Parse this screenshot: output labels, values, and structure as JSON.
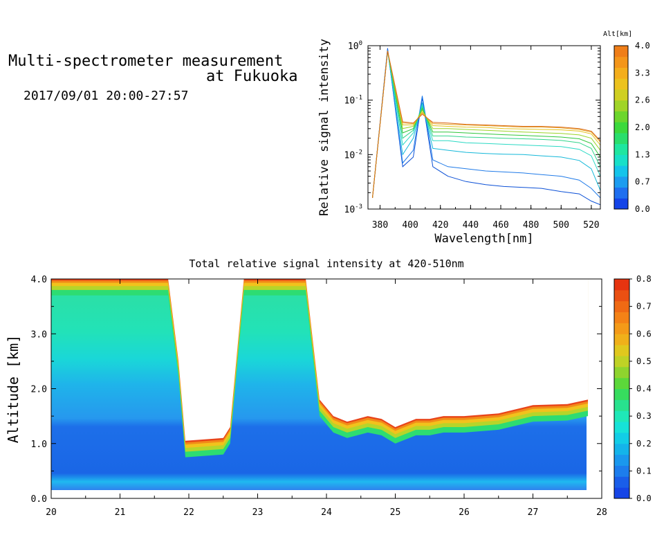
{
  "header": {
    "title_line1": "Multi-spectrometer measurement",
    "title_line2": "at Fukuoka",
    "date_range": "2017/09/01 20:00-27:57"
  },
  "chart_data": [
    {
      "type": "line",
      "xlabel": "Wavelength[nm]",
      "ylabel": "Relative signal intensity",
      "xlim": [
        372,
        526
      ],
      "ylim": [
        0.001,
        1
      ],
      "yscale": "log",
      "x_ticks": [
        "380",
        "400",
        "420",
        "440",
        "460",
        "480",
        "500",
        "520"
      ],
      "y_ticks": [
        "10-3",
        "10-2",
        "10-1",
        "100"
      ],
      "x": [
        375,
        385,
        395,
        402,
        408,
        415,
        425,
        437,
        450,
        462,
        475,
        487,
        500,
        512,
        520,
        526
      ],
      "series": [
        {
          "color": "#0a4fd6",
          "values": [
            0.0016,
            0.9,
            0.006,
            0.009,
            0.11,
            0.006,
            0.004,
            0.0032,
            0.0028,
            0.0026,
            0.0025,
            0.0024,
            0.0021,
            0.0019,
            0.0014,
            0.0012
          ]
        },
        {
          "color": "#1f7ae8",
          "values": [
            0.0016,
            0.85,
            0.007,
            0.012,
            0.12,
            0.008,
            0.006,
            0.0055,
            0.005,
            0.0048,
            0.0046,
            0.0043,
            0.004,
            0.0034,
            0.0024,
            0.0016
          ]
        },
        {
          "color": "#13b8d9",
          "values": [
            0.0016,
            0.8,
            0.01,
            0.02,
            0.09,
            0.013,
            0.012,
            0.011,
            0.0105,
            0.0102,
            0.01,
            0.0095,
            0.009,
            0.0078,
            0.0055,
            0.0022
          ]
        },
        {
          "color": "#2ad9c4",
          "values": [
            0.0016,
            0.8,
            0.015,
            0.025,
            0.08,
            0.018,
            0.018,
            0.0165,
            0.016,
            0.0155,
            0.015,
            0.0145,
            0.014,
            0.0125,
            0.0095,
            0.004
          ]
        },
        {
          "color": "#31d48a",
          "values": [
            0.0016,
            0.8,
            0.02,
            0.028,
            0.075,
            0.022,
            0.022,
            0.021,
            0.0205,
            0.02,
            0.0195,
            0.019,
            0.0182,
            0.0165,
            0.013,
            0.006
          ]
        },
        {
          "color": "#2fc63a",
          "values": [
            0.0016,
            0.8,
            0.025,
            0.03,
            0.07,
            0.026,
            0.026,
            0.025,
            0.024,
            0.0232,
            0.0225,
            0.0218,
            0.021,
            0.0195,
            0.016,
            0.009
          ]
        },
        {
          "color": "#9ad426",
          "values": [
            0.0016,
            0.8,
            0.03,
            0.033,
            0.065,
            0.03,
            0.03,
            0.029,
            0.028,
            0.027,
            0.026,
            0.0252,
            0.0245,
            0.023,
            0.02,
            0.012
          ]
        },
        {
          "color": "#e3c21d",
          "values": [
            0.0016,
            0.8,
            0.035,
            0.035,
            0.06,
            0.034,
            0.033,
            0.032,
            0.0315,
            0.03,
            0.0295,
            0.029,
            0.0285,
            0.027,
            0.024,
            0.015
          ]
        },
        {
          "color": "#e8a11f",
          "values": [
            0.0016,
            0.8,
            0.038,
            0.037,
            0.058,
            0.037,
            0.036,
            0.035,
            0.034,
            0.033,
            0.032,
            0.032,
            0.031,
            0.029,
            0.026,
            0.017
          ]
        },
        {
          "color": "#d96a1c",
          "values": [
            0.0016,
            0.8,
            0.04,
            0.038,
            0.055,
            0.039,
            0.038,
            0.036,
            0.035,
            0.034,
            0.033,
            0.033,
            0.032,
            0.03,
            0.027,
            0.018
          ]
        }
      ],
      "colorbar": {
        "title": "Alt[km]",
        "tick_labels": [
          "0.0",
          "0.7",
          "1.3",
          "2.0",
          "2.6",
          "3.3",
          "4.0"
        ],
        "colors": [
          "#1444e8",
          "#1f6ff0",
          "#1c9cf0",
          "#14c4ea",
          "#18e0c8",
          "#1fe6a0",
          "#2ade6c",
          "#3cd93c",
          "#6cd62c",
          "#a0d428",
          "#cfcf22",
          "#ecc21e",
          "#f4ae1c",
          "#f4961a",
          "#ef7e18"
        ]
      }
    },
    {
      "type": "heatmap",
      "title": "Total relative signal intensity at 420-510nm",
      "ylabel": "Altitude [km]",
      "xlim": [
        20,
        28
      ],
      "ylim": [
        0,
        4
      ],
      "x_ticks": [
        "20",
        "21",
        "22",
        "23",
        "24",
        "25",
        "26",
        "27",
        "28"
      ],
      "y_ticks": [
        "0.0",
        "1.0",
        "2.0",
        "3.0",
        "4.0"
      ],
      "cloud_base_time": [
        20.0,
        21.7,
        21.85,
        21.95,
        22.5,
        22.6,
        22.8,
        23.7,
        23.9,
        24.1,
        24.3,
        24.6,
        24.8,
        25.0,
        25.3,
        25.5,
        25.7,
        26.0,
        26.5,
        27.0,
        27.5,
        27.8
      ],
      "cloud_base_alt": [
        4.0,
        4.0,
        2.5,
        1.05,
        1.1,
        1.3,
        4.0,
        4.0,
        1.8,
        1.5,
        1.4,
        1.5,
        1.45,
        1.3,
        1.45,
        1.45,
        1.5,
        1.5,
        1.55,
        1.7,
        1.72,
        1.8
      ],
      "colorbar": {
        "tick_labels": [
          "0.0",
          "0.1",
          "0.2",
          "0.3",
          "0.4",
          "0.5",
          "0.6",
          "0.7",
          "0.8"
        ],
        "vmin": 0.0,
        "vmax": 0.8,
        "colors": [
          "#1645e6",
          "#1a5ee9",
          "#1d7ded",
          "#1a98ee",
          "#14b4ea",
          "#12cde6",
          "#16e2d8",
          "#1fe8b8",
          "#28e28e",
          "#37dc5e",
          "#5cd83a",
          "#8fd42e",
          "#bfd226",
          "#e0c81e",
          "#f0b01a",
          "#f49a18",
          "#f48216",
          "#f06a14",
          "#ea5012",
          "#e63410"
        ]
      }
    }
  ]
}
